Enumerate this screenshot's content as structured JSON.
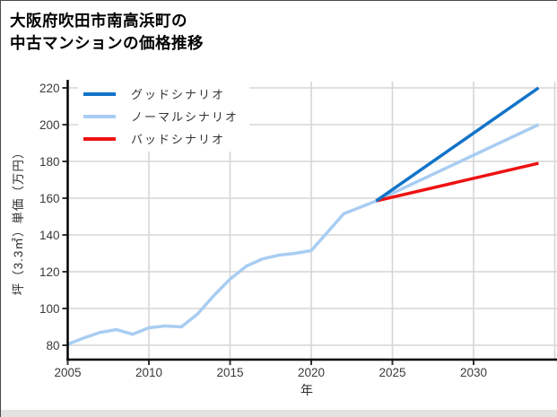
{
  "page": {
    "title_line1": "大阪府吹田市南高浜町の",
    "title_line2": "中古マンションの価格推移"
  },
  "legend": {
    "items": [
      {
        "label": "グッドシナリオ",
        "color": "#1173c9"
      },
      {
        "label": "ノーマルシナリオ",
        "color": "#a9cdf2"
      },
      {
        "label": "バッドシナリオ",
        "color": "#ee1212"
      }
    ]
  },
  "axes": {
    "x_title": "年",
    "y_title": "坪（3.3㎡）単価（万円）"
  },
  "chart_data": {
    "type": "line",
    "title": "大阪府吹田市南高浜町の中古マンションの価格推移",
    "xlabel": "年",
    "ylabel": "坪（3.3㎡）単価（万円）",
    "x_tick_labels": [
      2005,
      2010,
      2015,
      2020,
      2025,
      2030
    ],
    "x_gridlines": [
      2005,
      2010,
      2015,
      2020,
      2025,
      2030,
      2035
    ],
    "y_ticks": [
      80,
      100,
      120,
      140,
      160,
      180,
      200,
      220
    ],
    "xlim": [
      2005,
      2035.2
    ],
    "ylim": [
      72,
      223.5
    ],
    "grid": true,
    "legend_position": "upper-left-inside",
    "colors": {
      "good": "#1173c9",
      "normal": "#a9cdf2",
      "bad": "#ee1212",
      "gridline": "#d6d6d6",
      "spine": "#000000",
      "tick_text": "#3a3a3a"
    },
    "series": [
      {
        "name": "ノーマルシナリオ",
        "role": "history",
        "color": "#a9cdf2",
        "x": [
          2005,
          2006,
          2007,
          2008,
          2009,
          2010,
          2011,
          2012,
          2013,
          2014,
          2015,
          2016,
          2017,
          2018,
          2019,
          2020,
          2021,
          2022,
          2023,
          2024
        ],
        "values": [
          80.5,
          84,
          87,
          88.5,
          86,
          89.5,
          90.5,
          90,
          97,
          107,
          116,
          123,
          127,
          129,
          130,
          131.5,
          141.5,
          151.5,
          155,
          158.5
        ]
      },
      {
        "name": "ノーマルシナリオ",
        "role": "forecast-normal",
        "color": "#a9cdf2",
        "x": [
          2024,
          2034
        ],
        "values": [
          158.5,
          200
        ]
      },
      {
        "name": "バッドシナリオ",
        "role": "forecast-bad",
        "color": "#ee1212",
        "x": [
          2024,
          2034
        ],
        "values": [
          158.5,
          179
        ]
      },
      {
        "name": "グッドシナリオ",
        "role": "forecast-good",
        "color": "#1173c9",
        "x": [
          2024,
          2034
        ],
        "values": [
          158.5,
          220
        ]
      }
    ]
  }
}
